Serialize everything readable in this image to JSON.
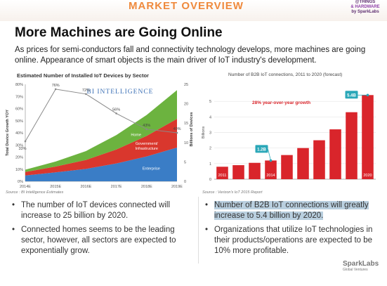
{
  "header": {
    "title": "MARKET OVERVIEW",
    "badge_top": "@THINGS",
    "badge_brand": "& HARDWARE",
    "badge_sub": "by SparkLabs"
  },
  "slide": {
    "title": "More Machines are Going Online",
    "intro": "As prices for semi-conductors fall and connectivity technology develops, more machines are going online. Appearance of smart objects is the main driver of IoT industry's development."
  },
  "chart_left": {
    "source": "Source : BI Intelligence Estimates"
  },
  "chart_right": {
    "source": "Source : Verizon's IoT 2015 Report"
  },
  "bullets_left": [
    "The number of IoT devices connected will increase to 25 billion by 2020.",
    "Connected homes seems to be the leading sector, however, all sectors are expected to exponentially grow."
  ],
  "bullets_right": [
    "Number of B2B IoT connections will greatly increase to 5.4 billion by 2020.",
    "Organizations that utilize IoT technologies in their products/operations are expected to be 10% more profitable."
  ],
  "footer": {
    "brand": "SparkLabs",
    "brand_sub": "Global Ventures"
  },
  "chart_data": [
    {
      "type": "area",
      "title": "Estimated Number of Installed IoT Devices by Sector",
      "watermark": "BI INTELLIGENCE",
      "categories": [
        "2014E",
        "2015E",
        "2016E",
        "2017E",
        "2018E",
        "2019E"
      ],
      "y_left_label": "Total Device Growth YOY",
      "y_left_ticks": [
        "0%",
        "10%",
        "20%",
        "30%",
        "40%",
        "50%",
        "60%",
        "70%",
        "80%"
      ],
      "y_right_label": "Billions of Devices",
      "y_right_ticks": [
        "0",
        "5",
        "10",
        "15",
        "20",
        "25"
      ],
      "ylim": [
        0,
        25
      ],
      "series": [
        {
          "name": "Enterprise",
          "values": [
            1.5,
            2.3,
            3.2,
            4.6,
            6.4,
            8.7
          ],
          "color": "#3a7dc6"
        },
        {
          "name": "Government/ Infrastructure",
          "values": [
            0.9,
            1.5,
            2.3,
            3.6,
            5.3,
            7.4
          ],
          "color": "#d9372d"
        },
        {
          "name": "Home",
          "values": [
            0.6,
            1.3,
            2.3,
            3.7,
            5.4,
            7.4
          ],
          "color": "#6cb33f"
        }
      ],
      "growth_line": {
        "name": "Total Device Growth YOY",
        "values": [
          33,
          76,
          72,
          56,
          43,
          40
        ],
        "labels": [
          "33%",
          "76%",
          "72%",
          "56%",
          "43%",
          "40%"
        ]
      }
    },
    {
      "type": "bar",
      "title": "Number of B2B IoT connections, 2011 to 2020 (forecast)",
      "categories": [
        "2011",
        "2012",
        "2013",
        "2014",
        "2015",
        "2016",
        "2017",
        "2018",
        "2019",
        "2020"
      ],
      "x_tick_labels": [
        "2011",
        "",
        "",
        "2014",
        "",
        "",
        "",
        "",
        "",
        "2020"
      ],
      "values": [
        0.8,
        0.9,
        1.05,
        1.2,
        1.55,
        2.0,
        2.5,
        3.2,
        4.3,
        5.4
      ],
      "ylabel": "Billions",
      "y_ticks": [
        "0",
        "1",
        "2",
        "3",
        "4",
        "5"
      ],
      "ylim": [
        0,
        6
      ],
      "bar_color": "#d9252b",
      "annotations": [
        {
          "label": "1.2B",
          "category": "2014"
        },
        {
          "label": "5.4B",
          "category": "2020"
        }
      ],
      "growth_text": "28% year-over-year growth"
    }
  ]
}
